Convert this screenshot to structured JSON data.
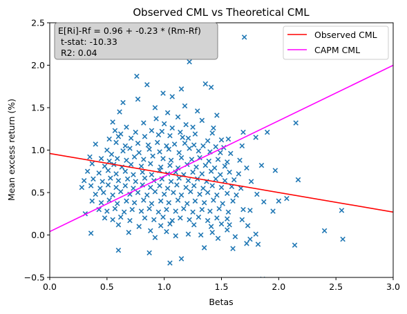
{
  "chart_data": {
    "type": "scatter",
    "title": "Observed CML vs Theoretical CML",
    "xlabel": "Betas",
    "ylabel": "Mean excess return (%)",
    "xlim": [
      0.0,
      3.0
    ],
    "ylim": [
      -0.5,
      2.5
    ],
    "xticks": [
      0.0,
      0.5,
      1.0,
      1.5,
      2.0,
      2.5,
      3.0
    ],
    "yticks": [
      -0.5,
      0.0,
      0.5,
      1.0,
      1.5,
      2.0,
      2.5
    ],
    "xtick_labels": [
      "0.0",
      "0.5",
      "1.0",
      "1.5",
      "2.0",
      "2.5",
      "3.0"
    ],
    "ytick_labels": [
      "−0.5",
      "0.0",
      "0.5",
      "1.0",
      "1.5",
      "2.0",
      "2.5"
    ],
    "grid": false,
    "legend_position": "top-right",
    "annotation": {
      "lines": [
        "E[Ri]-Rf = 0.96 + -0.23 * (Rm-Rf)",
        " t-stat: -10.33",
        " R2: 0.04"
      ],
      "position": "top-left"
    },
    "lines": [
      {
        "name": "Observed CML",
        "color": "#ff0000",
        "intercept": 0.96,
        "slope": -0.23
      },
      {
        "name": "CAPM CML",
        "color": "#ff00ff",
        "intercept": 0.04,
        "slope": 0.653
      }
    ],
    "scatter": {
      "color": "#1f77b4",
      "marker": "x",
      "points": [
        [
          0.45,
          2.38
        ],
        [
          1.7,
          2.33
        ],
        [
          1.22,
          2.04
        ],
        [
          0.76,
          1.87
        ],
        [
          0.85,
          1.77
        ],
        [
          1.36,
          1.78
        ],
        [
          1.41,
          1.74
        ],
        [
          1.15,
          1.72
        ],
        [
          0.99,
          1.67
        ],
        [
          1.07,
          1.63
        ],
        [
          0.77,
          1.6
        ],
        [
          0.64,
          1.56
        ],
        [
          1.18,
          1.52
        ],
        [
          0.92,
          1.5
        ],
        [
          0.61,
          1.45
        ],
        [
          1.29,
          1.46
        ],
        [
          1.03,
          1.44
        ],
        [
          1.46,
          1.41
        ],
        [
          0.93,
          1.37
        ],
        [
          1.12,
          1.39
        ],
        [
          1.33,
          1.35
        ],
        [
          0.55,
          1.33
        ],
        [
          0.82,
          1.32
        ],
        [
          1.0,
          1.31
        ],
        [
          1.19,
          1.3
        ],
        [
          0.57,
          1.23
        ],
        [
          0.67,
          1.27
        ],
        [
          1.07,
          1.26
        ],
        [
          1.25,
          1.27
        ],
        [
          1.43,
          1.26
        ],
        [
          2.15,
          1.32
        ],
        [
          0.62,
          1.19
        ],
        [
          0.75,
          1.21
        ],
        [
          0.89,
          1.23
        ],
        [
          0.98,
          1.22
        ],
        [
          1.14,
          1.21
        ],
        [
          1.27,
          1.19
        ],
        [
          1.42,
          1.2
        ],
        [
          1.69,
          1.21
        ],
        [
          1.9,
          1.21
        ],
        [
          0.52,
          1.13
        ],
        [
          0.6,
          1.16
        ],
        [
          0.71,
          1.14
        ],
        [
          0.83,
          1.16
        ],
        [
          0.95,
          1.18
        ],
        [
          1.05,
          1.17
        ],
        [
          1.16,
          1.15
        ],
        [
          1.21,
          1.14
        ],
        [
          1.38,
          1.11
        ],
        [
          1.5,
          1.12
        ],
        [
          1.56,
          1.13
        ],
        [
          1.8,
          1.15
        ],
        [
          0.4,
          1.07
        ],
        [
          0.58,
          1.09
        ],
        [
          0.66,
          1.05
        ],
        [
          0.77,
          1.08
        ],
        [
          0.86,
          1.06
        ],
        [
          0.94,
          1.09
        ],
        [
          1.02,
          1.05
        ],
        [
          1.09,
          1.07
        ],
        [
          1.18,
          1.08
        ],
        [
          1.26,
          1.06
        ],
        [
          1.34,
          1.05
        ],
        [
          1.45,
          1.04
        ],
        [
          1.52,
          1.03
        ],
        [
          1.68,
          1.05
        ],
        [
          0.5,
          1.0
        ],
        [
          0.54,
          0.95
        ],
        [
          0.64,
          0.99
        ],
        [
          0.7,
          1.02
        ],
        [
          0.78,
          0.97
        ],
        [
          0.87,
          1.01
        ],
        [
          0.96,
          0.98
        ],
        [
          1.04,
          1.01
        ],
        [
          1.13,
          0.97
        ],
        [
          1.22,
          1.02
        ],
        [
          1.3,
          0.99
        ],
        [
          1.4,
          0.98
        ],
        [
          1.49,
          0.97
        ],
        [
          1.58,
          0.96
        ],
        [
          0.35,
          0.92
        ],
        [
          0.45,
          0.9
        ],
        [
          0.52,
          0.87
        ],
        [
          0.59,
          0.9
        ],
        [
          0.67,
          0.88
        ],
        [
          0.74,
          0.92
        ],
        [
          0.82,
          0.89
        ],
        [
          0.9,
          0.93
        ],
        [
          0.99,
          0.9
        ],
        [
          1.06,
          0.88
        ],
        [
          1.15,
          0.91
        ],
        [
          1.24,
          0.89
        ],
        [
          1.31,
          0.91
        ],
        [
          1.39,
          0.87
        ],
        [
          1.47,
          0.89
        ],
        [
          1.55,
          0.86
        ],
        [
          1.66,
          0.88
        ],
        [
          0.37,
          0.84
        ],
        [
          0.48,
          0.81
        ],
        [
          0.56,
          0.83
        ],
        [
          0.63,
          0.8
        ],
        [
          0.71,
          0.83
        ],
        [
          0.8,
          0.81
        ],
        [
          0.88,
          0.84
        ],
        [
          0.97,
          0.8
        ],
        [
          1.05,
          0.82
        ],
        [
          1.12,
          0.79
        ],
        [
          1.2,
          0.83
        ],
        [
          1.28,
          0.8
        ],
        [
          1.36,
          0.82
        ],
        [
          1.44,
          0.79
        ],
        [
          1.53,
          0.81
        ],
        [
          1.72,
          0.79
        ],
        [
          1.85,
          0.82
        ],
        [
          0.33,
          0.75
        ],
        [
          0.43,
          0.73
        ],
        [
          0.51,
          0.76
        ],
        [
          0.58,
          0.72
        ],
        [
          0.66,
          0.75
        ],
        [
          0.73,
          0.71
        ],
        [
          0.81,
          0.74
        ],
        [
          0.89,
          0.71
        ],
        [
          0.96,
          0.76
        ],
        [
          1.03,
          0.72
        ],
        [
          1.1,
          0.74
        ],
        [
          1.17,
          0.71
        ],
        [
          1.25,
          0.74
        ],
        [
          1.33,
          0.72
        ],
        [
          1.41,
          0.75
        ],
        [
          1.49,
          0.71
        ],
        [
          1.57,
          0.74
        ],
        [
          1.65,
          0.72
        ],
        [
          1.97,
          0.76
        ],
        [
          0.3,
          0.64
        ],
        [
          0.38,
          0.66
        ],
        [
          0.46,
          0.63
        ],
        [
          0.53,
          0.67
        ],
        [
          0.6,
          0.64
        ],
        [
          0.68,
          0.66
        ],
        [
          0.75,
          0.63
        ],
        [
          0.83,
          0.67
        ],
        [
          0.91,
          0.64
        ],
        [
          0.98,
          0.66
        ],
        [
          1.06,
          0.63
        ],
        [
          1.13,
          0.67
        ],
        [
          1.21,
          0.64
        ],
        [
          1.29,
          0.66
        ],
        [
          1.37,
          0.63
        ],
        [
          1.45,
          0.66
        ],
        [
          1.53,
          0.64
        ],
        [
          1.61,
          0.65
        ],
        [
          1.76,
          0.63
        ],
        [
          2.17,
          0.65
        ],
        [
          0.28,
          0.56
        ],
        [
          0.36,
          0.58
        ],
        [
          0.44,
          0.55
        ],
        [
          0.51,
          0.59
        ],
        [
          0.58,
          0.56
        ],
        [
          0.66,
          0.58
        ],
        [
          0.73,
          0.55
        ],
        [
          0.81,
          0.59
        ],
        [
          0.88,
          0.56
        ],
        [
          0.96,
          0.58
        ],
        [
          1.03,
          0.55
        ],
        [
          1.11,
          0.59
        ],
        [
          1.19,
          0.56
        ],
        [
          1.26,
          0.58
        ],
        [
          1.34,
          0.55
        ],
        [
          1.42,
          0.58
        ],
        [
          1.5,
          0.56
        ],
        [
          1.59,
          0.57
        ],
        [
          1.67,
          0.55
        ],
        [
          0.4,
          0.48
        ],
        [
          0.47,
          0.5
        ],
        [
          0.55,
          0.47
        ],
        [
          0.62,
          0.51
        ],
        [
          0.7,
          0.48
        ],
        [
          0.77,
          0.5
        ],
        [
          0.85,
          0.47
        ],
        [
          0.92,
          0.51
        ],
        [
          1.0,
          0.48
        ],
        [
          1.08,
          0.5
        ],
        [
          1.15,
          0.47
        ],
        [
          1.23,
          0.51
        ],
        [
          1.31,
          0.48
        ],
        [
          1.38,
          0.5
        ],
        [
          1.46,
          0.47
        ],
        [
          1.55,
          0.49
        ],
        [
          1.63,
          0.47
        ],
        [
          1.81,
          0.48
        ],
        [
          0.31,
          0.25
        ],
        [
          0.37,
          0.4
        ],
        [
          0.45,
          0.38
        ],
        [
          0.52,
          0.41
        ],
        [
          0.59,
          0.37
        ],
        [
          0.67,
          0.4
        ],
        [
          0.74,
          0.38
        ],
        [
          0.82,
          0.41
        ],
        [
          0.89,
          0.37
        ],
        [
          0.97,
          0.4
        ],
        [
          1.04,
          0.38
        ],
        [
          1.12,
          0.41
        ],
        [
          1.2,
          0.37
        ],
        [
          1.27,
          0.4
        ],
        [
          1.35,
          0.38
        ],
        [
          1.43,
          0.41
        ],
        [
          1.51,
          0.37
        ],
        [
          1.6,
          0.4
        ],
        [
          1.87,
          0.39
        ],
        [
          2.0,
          0.4
        ],
        [
          2.07,
          0.43
        ],
        [
          0.43,
          0.3
        ],
        [
          0.5,
          0.28
        ],
        [
          0.57,
          0.31
        ],
        [
          0.65,
          0.27
        ],
        [
          0.72,
          0.3
        ],
        [
          0.8,
          0.28
        ],
        [
          0.87,
          0.31
        ],
        [
          0.95,
          0.27
        ],
        [
          1.02,
          0.3
        ],
        [
          1.1,
          0.28
        ],
        [
          1.17,
          0.31
        ],
        [
          1.25,
          0.27
        ],
        [
          1.33,
          0.3
        ],
        [
          1.4,
          0.28
        ],
        [
          1.48,
          0.31
        ],
        [
          1.56,
          0.27
        ],
        [
          1.69,
          0.3
        ],
        [
          1.75,
          0.29
        ],
        [
          1.95,
          0.28
        ],
        [
          2.55,
          0.29
        ],
        [
          0.48,
          0.2
        ],
        [
          0.55,
          0.18
        ],
        [
          0.62,
          0.21
        ],
        [
          0.7,
          0.17
        ],
        [
          0.83,
          0.2
        ],
        [
          0.91,
          0.18
        ],
        [
          0.99,
          0.21
        ],
        [
          1.07,
          0.17
        ],
        [
          1.14,
          0.2
        ],
        [
          1.22,
          0.18
        ],
        [
          1.3,
          0.21
        ],
        [
          1.38,
          0.17
        ],
        [
          1.46,
          0.2
        ],
        [
          1.55,
          0.19
        ],
        [
          1.68,
          0.18
        ],
        [
          0.6,
          0.12
        ],
        [
          0.78,
          0.1
        ],
        [
          0.97,
          0.11
        ],
        [
          1.05,
          0.13
        ],
        [
          1.26,
          0.12
        ],
        [
          1.41,
          0.1
        ],
        [
          1.5,
          0.13
        ],
        [
          1.57,
          0.12
        ],
        [
          1.73,
          0.11
        ],
        [
          0.36,
          0.02
        ],
        [
          0.69,
          0.03
        ],
        [
          0.88,
          0.05
        ],
        [
          1.02,
          0.04
        ],
        [
          1.21,
          0.01
        ],
        [
          1.42,
          0.03
        ],
        [
          1.55,
          0.06
        ],
        [
          1.8,
          0.01
        ],
        [
          2.4,
          0.05
        ],
        [
          0.92,
          -0.03
        ],
        [
          1.1,
          -0.01
        ],
        [
          1.32,
          0.0
        ],
        [
          1.47,
          -0.04
        ],
        [
          1.62,
          -0.02
        ],
        [
          1.75,
          -0.05
        ],
        [
          2.56,
          -0.05
        ],
        [
          1.72,
          -0.1
        ],
        [
          1.82,
          -0.11
        ],
        [
          2.14,
          -0.12
        ],
        [
          1.35,
          -0.15
        ],
        [
          1.6,
          -0.16
        ],
        [
          0.6,
          -0.18
        ],
        [
          0.87,
          -0.21
        ],
        [
          1.15,
          -0.28
        ],
        [
          1.05,
          -0.33
        ],
        [
          1.86,
          -0.52
        ]
      ]
    }
  }
}
